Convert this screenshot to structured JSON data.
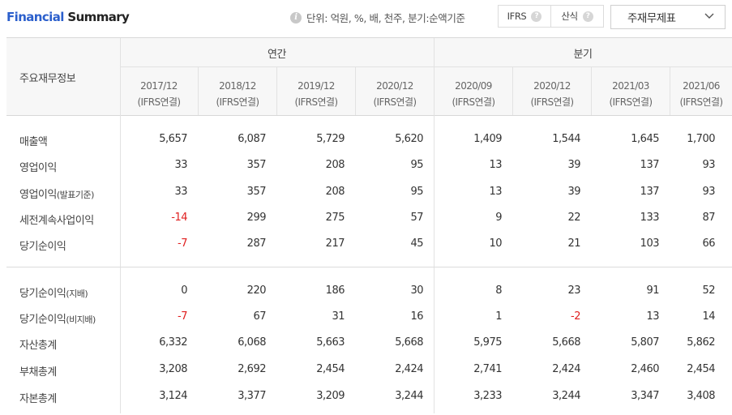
{
  "header": {
    "title_part1": "Financial",
    "title_part2": "Summary",
    "info_text": "단위: 억원, %, 배, 천주, 분기:순액기준",
    "toggle": [
      "IFRS",
      "산식"
    ],
    "help_glyph": "?",
    "dropdown_value": "주재무제표",
    "icons": [
      "info-icon",
      "help-icon",
      "chevron-down-icon"
    ]
  },
  "table": {
    "row_header_label": "주요재무정보",
    "groups": [
      "연간",
      "분기"
    ],
    "columns": [
      {
        "period": "2017/12",
        "basis": "(IFRS연결)"
      },
      {
        "period": "2018/12",
        "basis": "(IFRS연결)"
      },
      {
        "period": "2019/12",
        "basis": "(IFRS연결)"
      },
      {
        "period": "2020/12",
        "basis": "(IFRS연결)"
      },
      {
        "period": "2020/09",
        "basis": "(IFRS연결)"
      },
      {
        "period": "2020/12",
        "basis": "(IFRS연결)"
      },
      {
        "period": "2021/03",
        "basis": "(IFRS연결)"
      },
      {
        "period": "2021/06",
        "basis": "(IFRS연결)"
      }
    ],
    "rows": [
      {
        "label": "매출액",
        "label_small": "",
        "values": [
          "5,657",
          "6,087",
          "5,729",
          "5,620",
          "1,409",
          "1,544",
          "1,645",
          "1,700"
        ]
      },
      {
        "label": "영업이익",
        "label_small": "",
        "values": [
          "33",
          "357",
          "208",
          "95",
          "13",
          "39",
          "137",
          "93"
        ]
      },
      {
        "label": "영업이익",
        "label_small": "(발표기준)",
        "values": [
          "33",
          "357",
          "208",
          "95",
          "13",
          "39",
          "137",
          "93"
        ]
      },
      {
        "label": "세전계속사업이익",
        "label_small": "",
        "values": [
          "-14",
          "299",
          "275",
          "57",
          "9",
          "22",
          "133",
          "87"
        ]
      },
      {
        "label": "당기순이익",
        "label_small": "",
        "values": [
          "-7",
          "287",
          "217",
          "45",
          "10",
          "21",
          "103",
          "66"
        ]
      },
      {
        "label": "당기순이익",
        "label_small": "(지배)",
        "values": [
          "0",
          "220",
          "186",
          "30",
          "8",
          "23",
          "91",
          "52"
        ]
      },
      {
        "label": "당기순이익",
        "label_small": "(비지배)",
        "values": [
          "-7",
          "67",
          "31",
          "16",
          "1",
          "-2",
          "13",
          "14"
        ]
      },
      {
        "label": "자산총계",
        "label_small": "",
        "values": [
          "6,332",
          "6,068",
          "5,663",
          "5,668",
          "5,975",
          "5,668",
          "5,807",
          "5,862"
        ]
      },
      {
        "label": "부채총계",
        "label_small": "",
        "values": [
          "3,208",
          "2,692",
          "2,454",
          "2,424",
          "2,741",
          "2,424",
          "2,460",
          "2,454"
        ]
      },
      {
        "label": "자본총계",
        "label_small": "",
        "values": [
          "3,124",
          "3,377",
          "3,209",
          "3,244",
          "3,233",
          "3,244",
          "3,347",
          "3,408"
        ]
      }
    ],
    "negative_color": "#e02020",
    "title_accent": "#2b5fcc"
  }
}
